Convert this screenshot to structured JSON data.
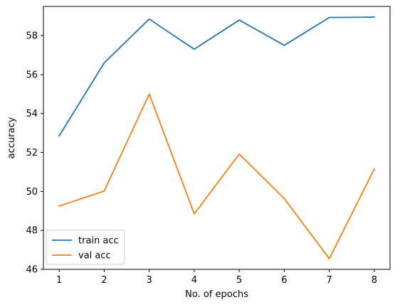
{
  "chart_data": {
    "type": "line",
    "title": "",
    "xlabel": "No. of epochs",
    "ylabel": "accuracy",
    "x": [
      1,
      2,
      3,
      4,
      5,
      6,
      7,
      8
    ],
    "xlim": [
      0.65,
      8.35
    ],
    "ylim": [
      46.0,
      59.5
    ],
    "xticks": [
      1,
      2,
      3,
      4,
      5,
      6,
      7,
      8
    ],
    "yticks": [
      46,
      48,
      50,
      52,
      54,
      56,
      58
    ],
    "grid": false,
    "legend_position": "lower-left",
    "series": [
      {
        "name": "train acc",
        "color": "#1f77b4",
        "values": [
          52.85,
          56.6,
          58.85,
          57.3,
          58.8,
          57.5,
          58.93,
          58.95
        ]
      },
      {
        "name": "val acc",
        "color": "#ff7f0e",
        "values": [
          49.25,
          50.02,
          55.0,
          48.85,
          51.92,
          49.63,
          46.55,
          51.15
        ]
      }
    ]
  }
}
